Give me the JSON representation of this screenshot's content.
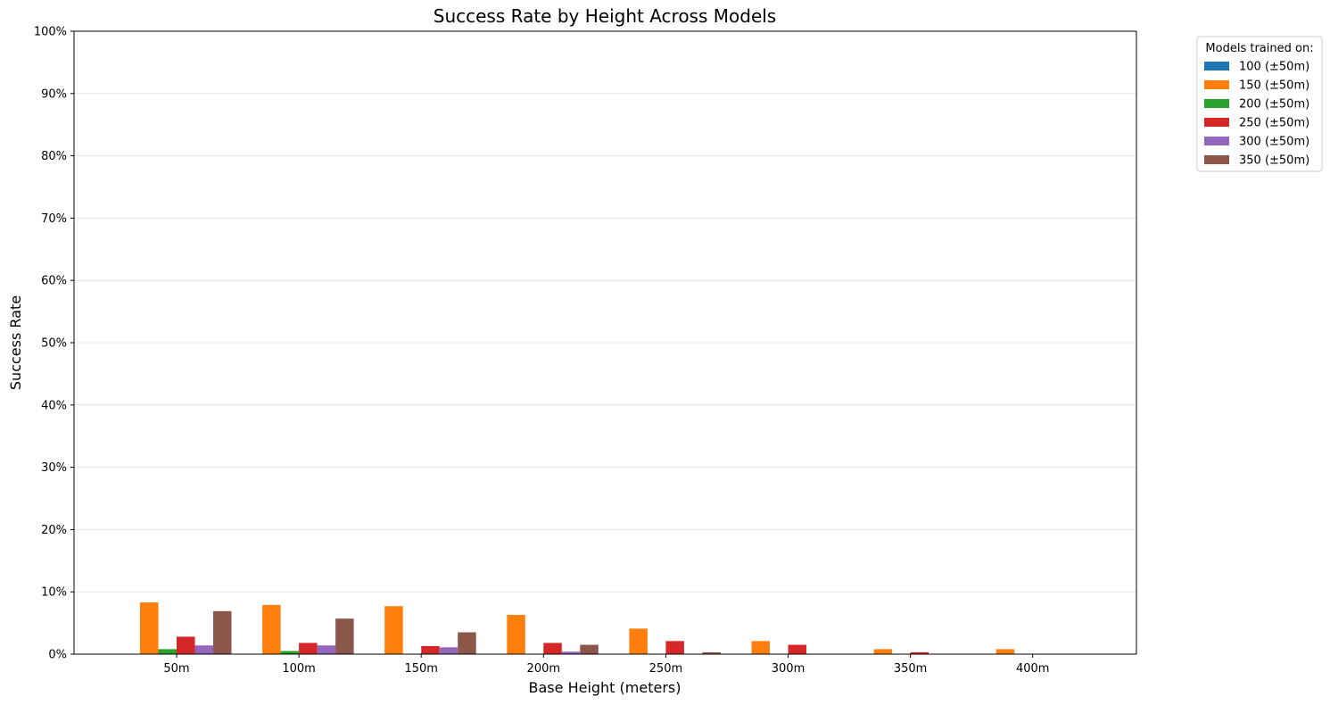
{
  "chart_data": {
    "type": "bar",
    "title": "Success Rate by Height Across Models",
    "xlabel": "Base Height (meters)",
    "ylabel": "Success Rate",
    "ylim": [
      0,
      100
    ],
    "y_unit": "%",
    "y_ticks": [
      "0%",
      "10%",
      "20%",
      "30%",
      "40%",
      "50%",
      "60%",
      "70%",
      "80%",
      "90%",
      "100%"
    ],
    "grid": "horizontal",
    "legend_title": "Models trained on:",
    "legend_position": "outside top-right",
    "categories": [
      "50m",
      "100m",
      "150m",
      "200m",
      "250m",
      "300m",
      "350m",
      "400m"
    ],
    "series": [
      {
        "name": "100 (±50m)",
        "color": "#1f77b4",
        "values": [
          0,
          0,
          0,
          0,
          0,
          0,
          0,
          0
        ]
      },
      {
        "name": "150 (±50m)",
        "color": "#ff7f0e",
        "values": [
          8.3,
          7.9,
          7.7,
          6.3,
          4.1,
          2.1,
          0.8,
          0.8
        ]
      },
      {
        "name": "200 (±50m)",
        "color": "#2ca02c",
        "values": [
          0.8,
          0.5,
          0,
          0,
          0,
          0,
          0,
          0
        ]
      },
      {
        "name": "250 (±50m)",
        "color": "#d62728",
        "values": [
          2.8,
          1.8,
          1.3,
          1.8,
          2.1,
          1.5,
          0.3,
          0
        ]
      },
      {
        "name": "300 (±50m)",
        "color": "#9467bd",
        "values": [
          1.4,
          1.4,
          1.1,
          0.4,
          0,
          0,
          0,
          0
        ]
      },
      {
        "name": "350 (±50m)",
        "color": "#8c564b",
        "values": [
          6.9,
          5.7,
          3.5,
          1.5,
          0.3,
          0,
          0,
          0
        ]
      }
    ]
  }
}
